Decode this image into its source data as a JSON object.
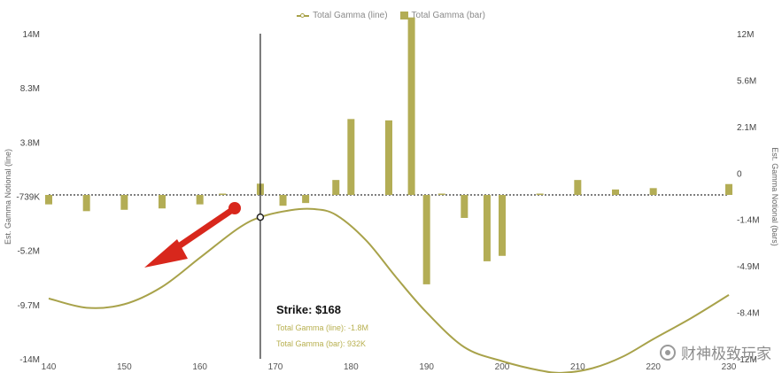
{
  "chart_data": {
    "type": "bar",
    "legend": {
      "line_label": "Total Gamma (line)",
      "bar_label": "Total Gamma (bar)",
      "placement": "top-center"
    },
    "y_left_label": "Est. Gamma Notional (line)",
    "y_right_label": "Est. Gamma Notional (bars)",
    "x_ticks": [
      "140",
      "150",
      "160",
      "170",
      "180",
      "190",
      "200",
      "210",
      "220",
      "230"
    ],
    "y_left_ticks": [
      "14M",
      "8.3M",
      "3.8M",
      "-739K",
      "-5.2M",
      "-9.7M",
      "-14M"
    ],
    "y_right_ticks": [
      "12M",
      "5.6M",
      "2.1M",
      "0",
      "-1.4M",
      "-4.9M",
      "-8.4M",
      "-12M"
    ],
    "y_left_range": [
      -14,
      14
    ],
    "y_right_range": [
      -12,
      12
    ],
    "x_range": [
      140,
      230
    ],
    "units": "millions",
    "bars": {
      "name": "Total Gamma (bar)",
      "x": [
        140,
        145,
        150,
        155,
        160,
        163,
        168,
        171,
        174,
        178,
        180,
        185,
        188,
        190,
        192,
        195,
        198,
        200,
        205,
        210,
        215,
        220,
        230
      ],
      "values": [
        -0.6,
        -1.1,
        -1.0,
        -0.9,
        -0.6,
        0.05,
        0.93,
        -0.7,
        -0.5,
        1.2,
        5.7,
        5.6,
        13.2,
        -6.5,
        0.05,
        -1.6,
        -4.8,
        -4.4,
        0.1,
        1.2,
        0.5,
        0.6,
        0.9
      ]
    },
    "line": {
      "name": "Total Gamma (line)",
      "x": [
        140,
        145,
        150,
        155,
        160,
        165,
        168,
        172,
        175,
        178,
        182,
        186,
        190,
        195,
        200,
        205,
        208,
        212,
        216,
        220,
        225,
        230
      ],
      "values": [
        -8.8,
        -9.6,
        -9.3,
        -7.8,
        -5.3,
        -2.8,
        -1.8,
        -1.2,
        -1.1,
        -1.6,
        -3.8,
        -7.0,
        -10.0,
        -13.0,
        -14.2,
        -15.0,
        -15.2,
        -14.8,
        -13.8,
        -12.3,
        -10.5,
        -8.5
      ]
    },
    "hover_x": 168,
    "hover_color": "#222222",
    "series_color": "#b3ad55",
    "line_color": "#a8a24a",
    "arrow_color": "#d8271c"
  },
  "tooltip": {
    "title": "Strike: $168",
    "line_row": "Total Gamma (line): -1.8M",
    "bar_row": "Total Gamma (bar): 932K"
  },
  "watermark": "财神极致玩家"
}
